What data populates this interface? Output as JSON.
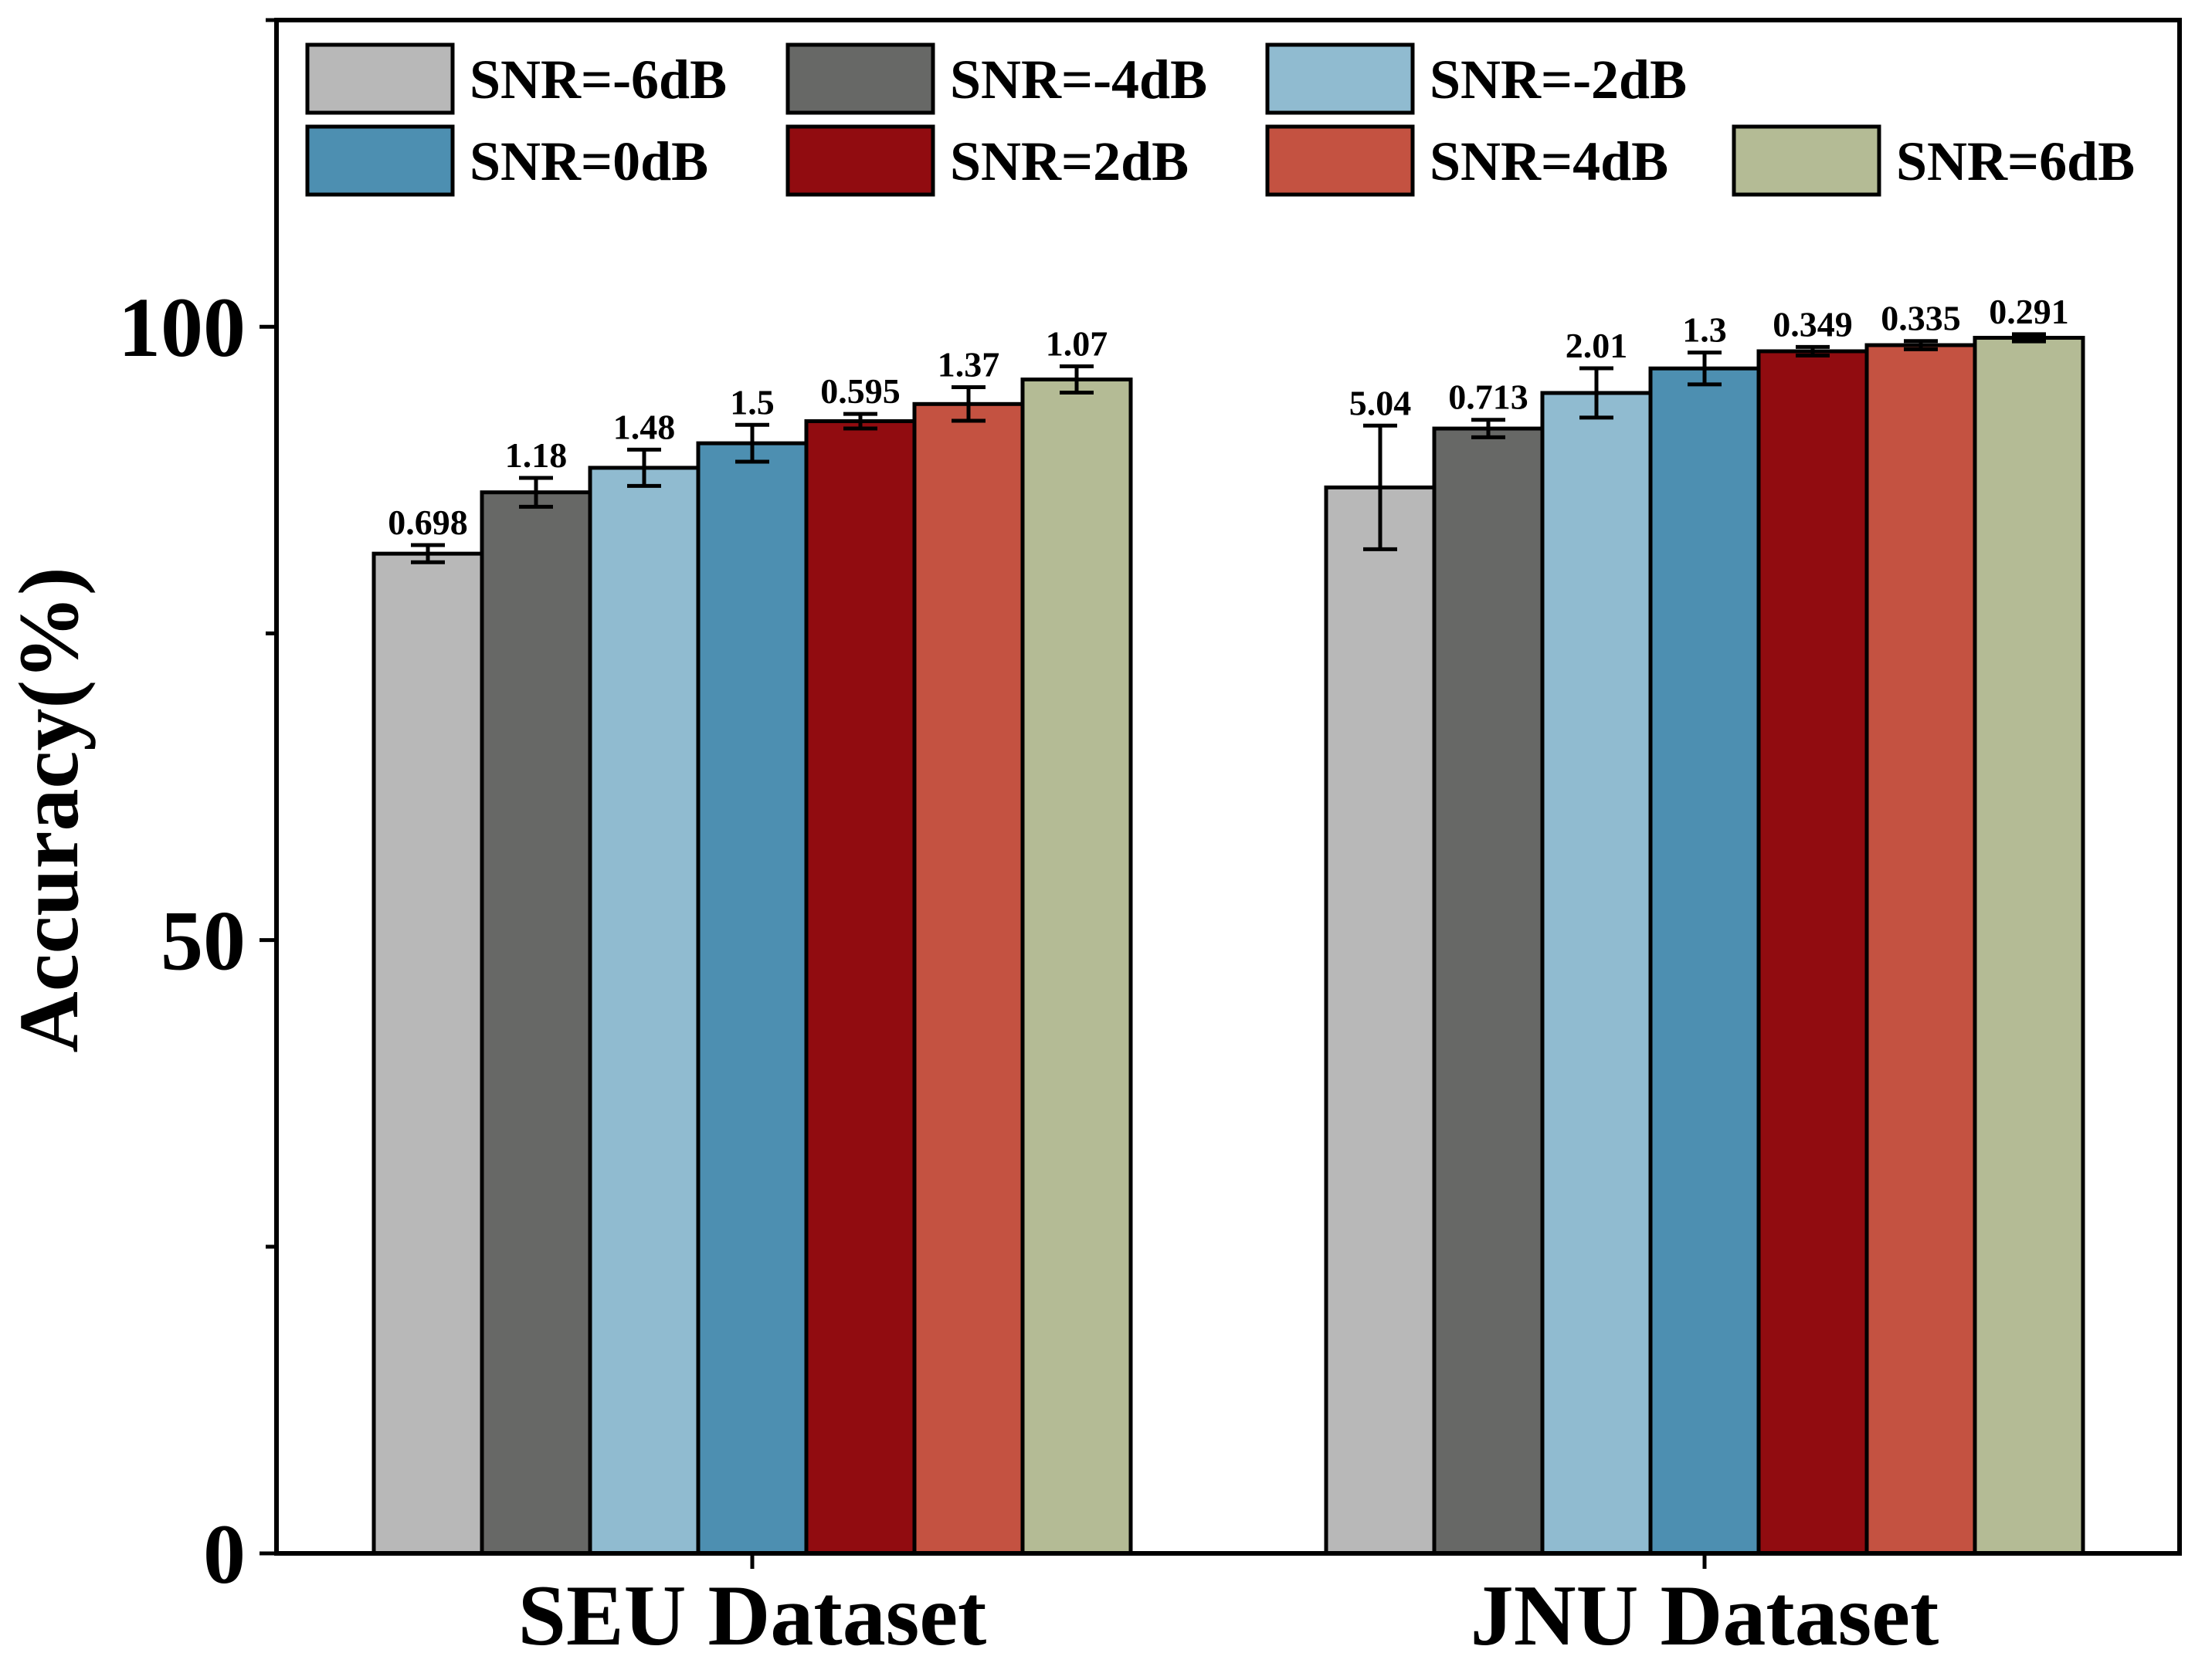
{
  "chart_data": {
    "type": "bar",
    "title": "",
    "xlabel": "",
    "ylabel": "Accuracy(%)",
    "ylim": [
      0,
      125
    ],
    "yticks": [
      0,
      50,
      100
    ],
    "categories": [
      "SEU Dataset",
      "JNU Dataset"
    ],
    "series": [
      {
        "name": "SNR=-6dB",
        "color": "#b8b8b8",
        "values": [
          81.5,
          86.9
        ],
        "errors": [
          "0.698",
          "5.04"
        ]
      },
      {
        "name": "SNR=-4dB",
        "color": "#676866",
        "values": [
          86.5,
          91.7
        ],
        "errors": [
          "1.18",
          "0.713"
        ]
      },
      {
        "name": "SNR=-2dB",
        "color": "#90bbd0",
        "values": [
          88.5,
          94.6
        ],
        "errors": [
          "1.48",
          "2.01"
        ]
      },
      {
        "name": "SNR=0dB",
        "color": "#4d8fb1",
        "values": [
          90.5,
          96.6
        ],
        "errors": [
          "1.5",
          "1.3"
        ]
      },
      {
        "name": "SNR=2dB",
        "color": "#910c10",
        "values": [
          92.3,
          98.0
        ],
        "errors": [
          "0.595",
          "0.349"
        ]
      },
      {
        "name": "SNR=4dB",
        "color": "#c45241",
        "values": [
          93.7,
          98.5
        ],
        "errors": [
          "1.37",
          "0.335"
        ]
      },
      {
        "name": "SNR=6dB",
        "color": "#b4bb95",
        "values": [
          95.7,
          99.1
        ],
        "errors": [
          "1.07",
          "0.291"
        ]
      }
    ]
  }
}
